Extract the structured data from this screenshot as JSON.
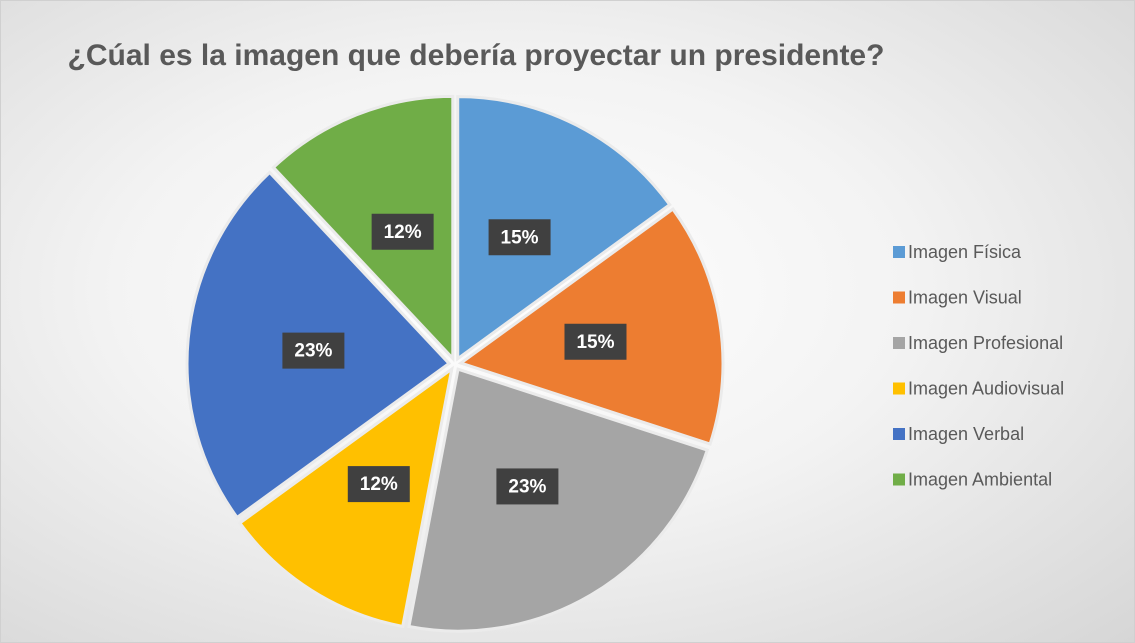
{
  "chart_data": {
    "type": "pie",
    "title": "¿Cúal es la imagen que debería proyectar un presidente?",
    "categories": [
      "Imagen Física",
      "Imagen Visual",
      "Imagen Profesional",
      "Imagen Audiovisual",
      "Imagen Verbal",
      "Imagen Ambiental"
    ],
    "values": [
      15,
      15,
      23,
      12,
      23,
      12
    ],
    "value_labels": [
      "15%",
      "15%",
      "23%",
      "12%",
      "23%",
      "12%"
    ],
    "colors": [
      "#5b9bd5",
      "#ed7d31",
      "#a5a5a5",
      "#ffc000",
      "#4472c4",
      "#70ad47"
    ],
    "legend": "right"
  }
}
